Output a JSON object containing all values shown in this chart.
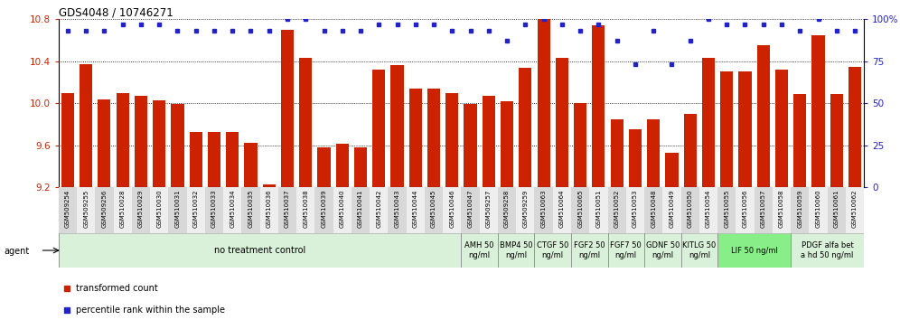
{
  "title": "GDS4048 / 10746271",
  "bar_color": "#CC2200",
  "dot_color": "#2222CC",
  "bg_color": "#ffffff",
  "ylim_left": [
    9.2,
    10.8
  ],
  "ylim_right": [
    0,
    100
  ],
  "yticks_left": [
    9.2,
    9.6,
    10.0,
    10.4,
    10.8
  ],
  "yticks_right": [
    0,
    25,
    50,
    75,
    100
  ],
  "gridlines": [
    9.6,
    10.0,
    10.4
  ],
  "samples": [
    "GSM509254",
    "GSM509255",
    "GSM509256",
    "GSM510028",
    "GSM510029",
    "GSM510030",
    "GSM510031",
    "GSM510032",
    "GSM510033",
    "GSM510034",
    "GSM510035",
    "GSM510036",
    "GSM510037",
    "GSM510038",
    "GSM510039",
    "GSM510040",
    "GSM510041",
    "GSM510042",
    "GSM510043",
    "GSM510044",
    "GSM510045",
    "GSM510046",
    "GSM510047",
    "GSM509257",
    "GSM509258",
    "GSM509259",
    "GSM510063",
    "GSM510064",
    "GSM510065",
    "GSM510051",
    "GSM510052",
    "GSM510053",
    "GSM510048",
    "GSM510049",
    "GSM510050",
    "GSM510054",
    "GSM510055",
    "GSM510056",
    "GSM510057",
    "GSM510058",
    "GSM510059",
    "GSM510060",
    "GSM510061",
    "GSM510062"
  ],
  "bar_values": [
    10.1,
    10.37,
    10.04,
    10.1,
    10.07,
    10.03,
    9.99,
    9.73,
    9.73,
    9.73,
    9.62,
    9.23,
    10.7,
    10.43,
    9.58,
    9.61,
    9.58,
    10.32,
    10.36,
    10.14,
    10.14,
    10.1,
    9.99,
    10.07,
    10.02,
    10.34,
    10.8,
    10.43,
    10.0,
    10.74,
    9.85,
    9.75,
    9.85,
    9.53,
    9.9,
    10.43,
    10.3,
    10.3,
    10.55,
    10.32,
    10.09,
    10.65,
    10.09,
    10.35
  ],
  "dot_values": [
    93,
    93,
    93,
    97,
    97,
    97,
    93,
    93,
    93,
    93,
    93,
    93,
    100,
    100,
    93,
    93,
    93,
    97,
    97,
    97,
    97,
    93,
    93,
    93,
    87,
    97,
    100,
    97,
    93,
    97,
    87,
    73,
    93,
    73,
    87,
    100,
    97,
    97,
    97,
    97,
    93,
    100,
    93,
    93
  ],
  "agent_groups": [
    {
      "label": "no treatment control",
      "start": 0,
      "end": 22,
      "color": "#d9f0d9",
      "font_size": 7
    },
    {
      "label": "AMH 50\nng/ml",
      "start": 22,
      "end": 24,
      "color": "#d9f0d9",
      "font_size": 6
    },
    {
      "label": "BMP4 50\nng/ml",
      "start": 24,
      "end": 26,
      "color": "#d9f0d9",
      "font_size": 6
    },
    {
      "label": "CTGF 50\nng/ml",
      "start": 26,
      "end": 28,
      "color": "#d9f0d9",
      "font_size": 6
    },
    {
      "label": "FGF2 50\nng/ml",
      "start": 28,
      "end": 30,
      "color": "#d9f0d9",
      "font_size": 6
    },
    {
      "label": "FGF7 50\nng/ml",
      "start": 30,
      "end": 32,
      "color": "#d9f0d9",
      "font_size": 6
    },
    {
      "label": "GDNF 50\nng/ml",
      "start": 32,
      "end": 34,
      "color": "#d9f0d9",
      "font_size": 6
    },
    {
      "label": "KITLG 50\nng/ml",
      "start": 34,
      "end": 36,
      "color": "#d9f0d9",
      "font_size": 6
    },
    {
      "label": "LIF 50 ng/ml",
      "start": 36,
      "end": 40,
      "color": "#88ee88",
      "font_size": 6
    },
    {
      "label": "PDGF alfa bet\na hd 50 ng/ml",
      "start": 40,
      "end": 44,
      "color": "#d9f0d9",
      "font_size": 6
    }
  ],
  "tick_bg_even": "#d8d8d8",
  "tick_bg_odd": "#eeeeee",
  "agent_label": "agent",
  "legend_items": [
    {
      "label": "transformed count",
      "color": "#CC2200"
    },
    {
      "label": "percentile rank within the sample",
      "color": "#2222CC"
    }
  ]
}
